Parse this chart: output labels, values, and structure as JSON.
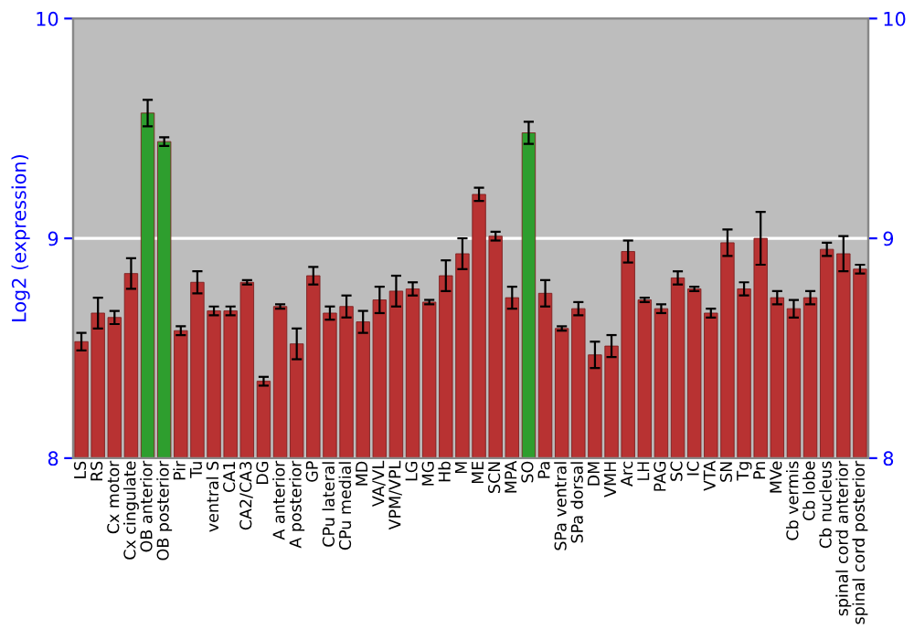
{
  "chart_data": {
    "type": "bar",
    "ylabel": "Log2 (expression)",
    "categories": [
      "LS",
      "RS",
      "Cx motor",
      "Cx cingulate",
      "OB anterior",
      "OB posterior",
      "Pir",
      "Tu",
      "ventral S",
      "CA1",
      "CA2/CA3",
      "DG",
      "A anterior",
      "A posterior",
      "GP",
      "CPu lateral",
      "CPu medial",
      "MD",
      "VA/VL",
      "VPM/VPL",
      "LG",
      "MG",
      "Hb",
      "M",
      "ME",
      "SCN",
      "MPA",
      "SO",
      "Pa",
      "SPa ventral",
      "SPa dorsal",
      "DM",
      "VMH",
      "Arc",
      "LH",
      "PAG",
      "SC",
      "IC",
      "VTA",
      "SN",
      "Tg",
      "Pn",
      "MVe",
      "Cb vermis",
      "Cb lobe",
      "Cb nucleus",
      "spinal cord anterior",
      "spinal cord posterior"
    ],
    "values": [
      8.53,
      8.66,
      8.64,
      8.84,
      9.57,
      9.44,
      8.58,
      8.8,
      8.67,
      8.67,
      8.8,
      8.35,
      8.69,
      8.52,
      8.83,
      8.66,
      8.69,
      8.62,
      8.72,
      8.76,
      8.77,
      8.71,
      8.83,
      8.93,
      9.2,
      9.01,
      8.73,
      9.48,
      8.75,
      8.59,
      8.68,
      8.47,
      8.51,
      8.94,
      8.72,
      8.68,
      8.82,
      8.77,
      8.66,
      8.98,
      8.77,
      9.0,
      8.73,
      8.68,
      8.73,
      8.95,
      8.93,
      8.86
    ],
    "errors": [
      0.04,
      0.07,
      0.03,
      0.07,
      0.06,
      0.02,
      0.02,
      0.05,
      0.02,
      0.02,
      0.01,
      0.02,
      0.01,
      0.07,
      0.04,
      0.03,
      0.05,
      0.05,
      0.06,
      0.07,
      0.03,
      0.01,
      0.07,
      0.07,
      0.03,
      0.02,
      0.05,
      0.05,
      0.06,
      0.01,
      0.03,
      0.06,
      0.05,
      0.05,
      0.01,
      0.02,
      0.03,
      0.01,
      0.02,
      0.06,
      0.03,
      0.12,
      0.03,
      0.04,
      0.03,
      0.03,
      0.08,
      0.02
    ],
    "colors": [
      "#b83232",
      "#b83232",
      "#b83232",
      "#b83232",
      "#2e9e2e",
      "#2e9e2e",
      "#b83232",
      "#b83232",
      "#b83232",
      "#b83232",
      "#b83232",
      "#b83232",
      "#b83232",
      "#b83232",
      "#b83232",
      "#b83232",
      "#b83232",
      "#b83232",
      "#b83232",
      "#b83232",
      "#b83232",
      "#b83232",
      "#b83232",
      "#b83232",
      "#b83232",
      "#b83232",
      "#b83232",
      "#2e9e2e",
      "#b83232",
      "#b83232",
      "#b83232",
      "#b83232",
      "#b83232",
      "#b83232",
      "#b83232",
      "#b83232",
      "#b83232",
      "#b83232",
      "#b83232",
      "#b83232",
      "#b83232",
      "#b83232",
      "#b83232",
      "#b83232",
      "#b83232",
      "#b83232",
      "#b83232",
      "#b83232"
    ],
    "ylim": [
      8,
      10
    ],
    "yticks": [
      8,
      9,
      10
    ],
    "y2lim": [
      8,
      10
    ],
    "y2ticks": [
      8,
      9,
      10
    ],
    "grid": "y"
  }
}
